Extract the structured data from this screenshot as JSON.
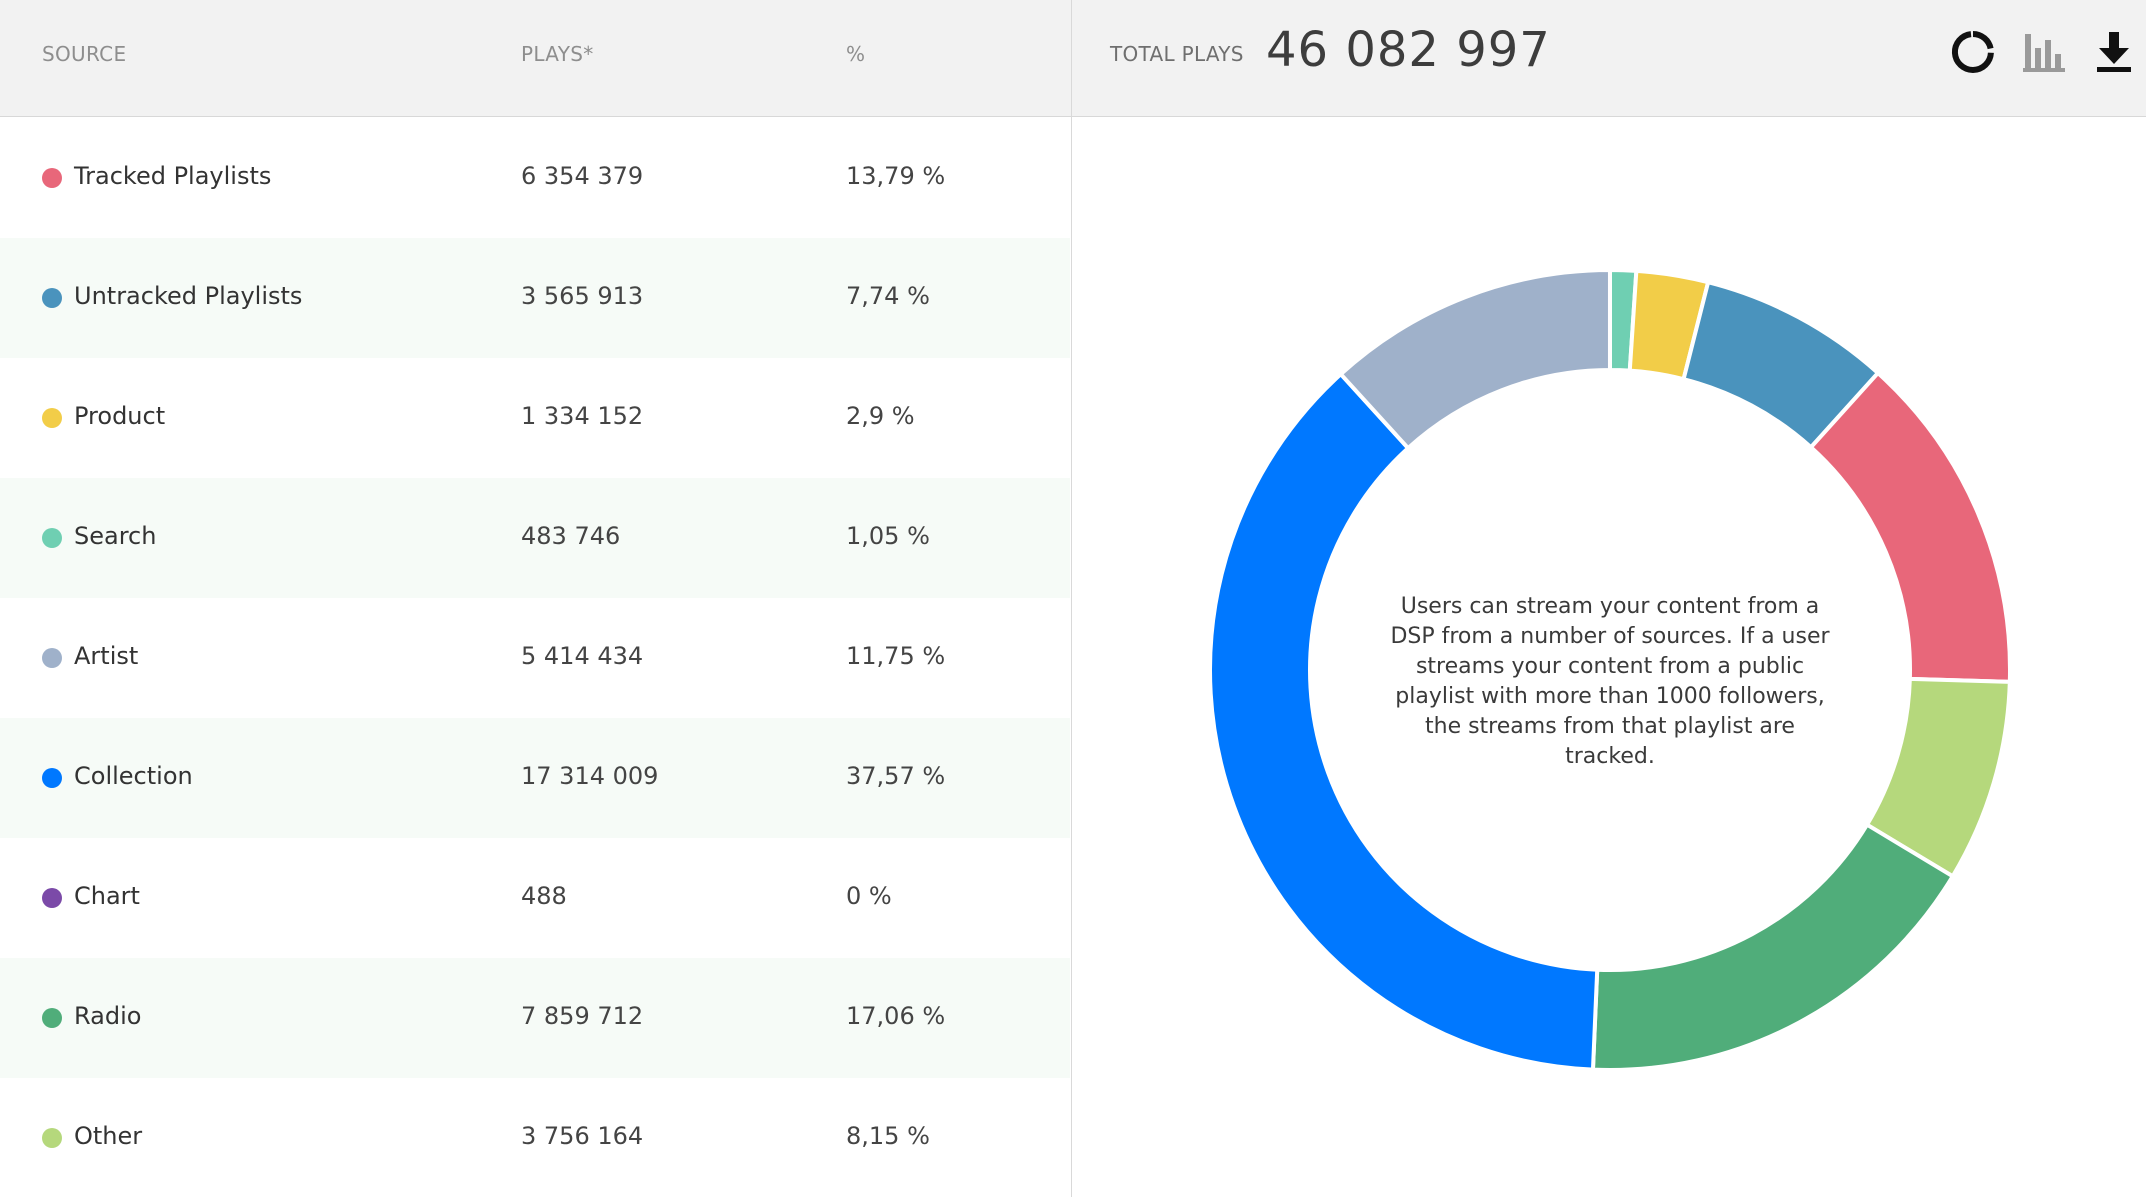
{
  "header": {
    "source_label": "SOURCE",
    "plays_label": "PLAYS*",
    "pct_label": "%",
    "total_label": "TOTAL PLAYS",
    "total_value": "46 082 997"
  },
  "toolbar": {
    "icons": [
      "donut-chart-icon",
      "bar-chart-icon",
      "download-icon"
    ]
  },
  "rows": [
    {
      "name": "Tracked Playlists",
      "plays": "6 354 379",
      "pct": "13,79 %",
      "color": "#e8677a"
    },
    {
      "name": "Untracked Playlists",
      "plays": "3 565 913",
      "pct": "7,74 %",
      "color": "#4a93bd"
    },
    {
      "name": "Product",
      "plays": "1 334 152",
      "pct": "2,9 %",
      "color": "#f2cd48"
    },
    {
      "name": "Search",
      "plays": "483 746",
      "pct": "1,05 %",
      "color": "#6fcfb2"
    },
    {
      "name": "Artist",
      "plays": "5 414 434",
      "pct": "11,75 %",
      "color": "#9fb1ca"
    },
    {
      "name": "Collection",
      "plays": "17 314 009",
      "pct": "37,57 %",
      "color": "#0078ff"
    },
    {
      "name": "Chart",
      "plays": "488",
      "pct": "0 %",
      "color": "#7b4aa8"
    },
    {
      "name": "Radio",
      "plays": "7 859 712",
      "pct": "17,06 %",
      "color": "#50ad7a"
    },
    {
      "name": "Other",
      "plays": "3 756 164",
      "pct": "8,15 %",
      "color": "#b5d87c"
    }
  ],
  "chart_data": {
    "type": "pie",
    "variant": "donut",
    "categories": [
      "Tracked Playlists",
      "Untracked Playlists",
      "Product",
      "Search",
      "Artist",
      "Collection",
      "Chart",
      "Radio",
      "Other"
    ],
    "values": [
      6354379,
      3565913,
      1334152,
      483746,
      5414434,
      17314009,
      488,
      7859712,
      3756164
    ],
    "percentages": [
      13.79,
      7.74,
      2.9,
      1.05,
      11.75,
      37.57,
      0,
      17.06,
      8.15
    ],
    "colors": [
      "#e8677a",
      "#4a93bd",
      "#f2cd48",
      "#6fcfb2",
      "#9fb1ca",
      "#0078ff",
      "#7b4aa8",
      "#50ad7a",
      "#b5d87c"
    ],
    "total": 46082997,
    "center_text": "Users can stream your content from a DSP from a number of sources. If a user streams your content from a public playlist with more than 1000 followers, the streams from that playlist are tracked."
  }
}
